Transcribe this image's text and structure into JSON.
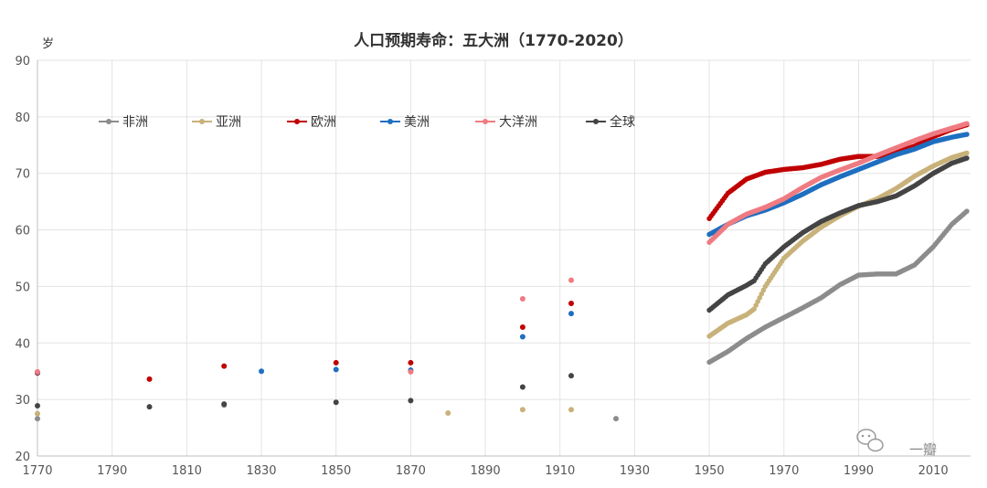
{
  "chart_data": {
    "type": "scatter",
    "title": "人口预期寿命：五大洲（1770-2020）",
    "ylabel": "岁",
    "xlabel": "",
    "xlim": [
      1770,
      2020
    ],
    "ylim": [
      20,
      90
    ],
    "xticks": [
      "1770",
      "1790",
      "1810",
      "1830",
      "1850",
      "1870",
      "1890",
      "1910",
      "1930",
      "1950",
      "1970",
      "1990",
      "2010"
    ],
    "yticks": [
      "20",
      "30",
      "40",
      "50",
      "60",
      "70",
      "80",
      "90"
    ],
    "grid": true,
    "legend_position": "top-left",
    "colors": {
      "非洲": "#8c8c8c",
      "亚洲": "#c8b27a",
      "欧洲": "#c00000",
      "美洲": "#1f6fc0",
      "大洋洲": "#ef7b82",
      "全球": "#444444"
    },
    "series": [
      {
        "name": "非洲",
        "color": "#8c8c8c",
        "early": [
          [
            1770,
            26.6
          ],
          [
            1820,
            29.0
          ],
          [
            1925,
            26.6
          ]
        ],
        "modern": [
          [
            1950,
            36.6
          ],
          [
            1955,
            38.5
          ],
          [
            1960,
            40.8
          ],
          [
            1965,
            42.8
          ],
          [
            1970,
            44.5
          ],
          [
            1975,
            46.2
          ],
          [
            1980,
            48.0
          ],
          [
            1985,
            50.3
          ],
          [
            1990,
            52.0
          ],
          [
            1995,
            52.2
          ],
          [
            2000,
            52.2
          ],
          [
            2005,
            53.8
          ],
          [
            2010,
            57.0
          ],
          [
            2015,
            61.0
          ],
          [
            2019,
            63.3
          ]
        ]
      },
      {
        "name": "亚洲",
        "color": "#c8b27a",
        "early": [
          [
            1770,
            27.5
          ],
          [
            1880,
            27.6
          ],
          [
            1900,
            28.2
          ],
          [
            1913,
            28.2
          ]
        ],
        "modern": [
          [
            1950,
            41.2
          ],
          [
            1955,
            43.5
          ],
          [
            1960,
            45.0
          ],
          [
            1962,
            46.0
          ],
          [
            1965,
            50.0
          ],
          [
            1970,
            55.0
          ],
          [
            1975,
            58.0
          ],
          [
            1980,
            60.5
          ],
          [
            1985,
            62.5
          ],
          [
            1990,
            64.2
          ],
          [
            1995,
            65.5
          ],
          [
            2000,
            67.3
          ],
          [
            2005,
            69.5
          ],
          [
            2010,
            71.3
          ],
          [
            2015,
            72.8
          ],
          [
            2019,
            73.6
          ]
        ]
      },
      {
        "name": "欧洲",
        "color": "#c00000",
        "early": [
          [
            1770,
            34.7
          ],
          [
            1800,
            33.6
          ],
          [
            1820,
            35.9
          ],
          [
            1850,
            36.5
          ],
          [
            1870,
            36.5
          ],
          [
            1900,
            42.8
          ],
          [
            1913,
            47.0
          ]
        ],
        "modern": [
          [
            1950,
            62.0
          ],
          [
            1955,
            66.5
          ],
          [
            1960,
            69.0
          ],
          [
            1965,
            70.2
          ],
          [
            1970,
            70.7
          ],
          [
            1975,
            71.0
          ],
          [
            1980,
            71.6
          ],
          [
            1985,
            72.5
          ],
          [
            1990,
            73.0
          ],
          [
            1995,
            73.0
          ],
          [
            2000,
            73.8
          ],
          [
            2005,
            74.8
          ],
          [
            2010,
            76.5
          ],
          [
            2015,
            77.8
          ],
          [
            2019,
            78.6
          ]
        ]
      },
      {
        "name": "美洲",
        "color": "#1f6fc0",
        "early": [
          [
            1770,
            34.8
          ],
          [
            1830,
            35.0
          ],
          [
            1850,
            35.3
          ],
          [
            1870,
            35.2
          ],
          [
            1900,
            41.1
          ],
          [
            1913,
            45.2
          ]
        ],
        "modern": [
          [
            1950,
            59.2
          ],
          [
            1955,
            61.0
          ],
          [
            1960,
            62.5
          ],
          [
            1965,
            63.5
          ],
          [
            1970,
            64.8
          ],
          [
            1975,
            66.3
          ],
          [
            1980,
            68.0
          ],
          [
            1985,
            69.4
          ],
          [
            1990,
            70.7
          ],
          [
            1995,
            72.0
          ],
          [
            2000,
            73.3
          ],
          [
            2005,
            74.3
          ],
          [
            2010,
            75.6
          ],
          [
            2015,
            76.4
          ],
          [
            2019,
            76.9
          ]
        ]
      },
      {
        "name": "大洋洲",
        "color": "#ef7b82",
        "early": [
          [
            1770,
            34.9
          ],
          [
            1870,
            34.9
          ],
          [
            1900,
            47.8
          ],
          [
            1913,
            51.1
          ]
        ],
        "modern": [
          [
            1950,
            57.8
          ],
          [
            1955,
            61.0
          ],
          [
            1960,
            62.8
          ],
          [
            1965,
            64.0
          ],
          [
            1970,
            65.5
          ],
          [
            1975,
            67.5
          ],
          [
            1980,
            69.3
          ],
          [
            1985,
            70.6
          ],
          [
            1990,
            71.8
          ],
          [
            1995,
            73.2
          ],
          [
            2000,
            74.5
          ],
          [
            2005,
            75.8
          ],
          [
            2010,
            77.0
          ],
          [
            2015,
            78.0
          ],
          [
            2019,
            78.8
          ]
        ]
      },
      {
        "name": "全球",
        "color": "#444444",
        "early": [
          [
            1770,
            28.9
          ],
          [
            1800,
            28.7
          ],
          [
            1820,
            29.2
          ],
          [
            1850,
            29.5
          ],
          [
            1870,
            29.8
          ],
          [
            1900,
            32.2
          ],
          [
            1913,
            34.2
          ]
        ],
        "modern": [
          [
            1950,
            45.8
          ],
          [
            1955,
            48.5
          ],
          [
            1960,
            50.2
          ],
          [
            1962,
            51.0
          ],
          [
            1965,
            54.0
          ],
          [
            1970,
            57.0
          ],
          [
            1975,
            59.5
          ],
          [
            1980,
            61.5
          ],
          [
            1985,
            63.0
          ],
          [
            1990,
            64.3
          ],
          [
            1995,
            65.0
          ],
          [
            2000,
            66.0
          ],
          [
            2005,
            67.8
          ],
          [
            2010,
            70.0
          ],
          [
            2015,
            71.8
          ],
          [
            2019,
            72.7
          ]
        ]
      }
    ]
  },
  "watermark": {
    "text": "一瓣"
  }
}
